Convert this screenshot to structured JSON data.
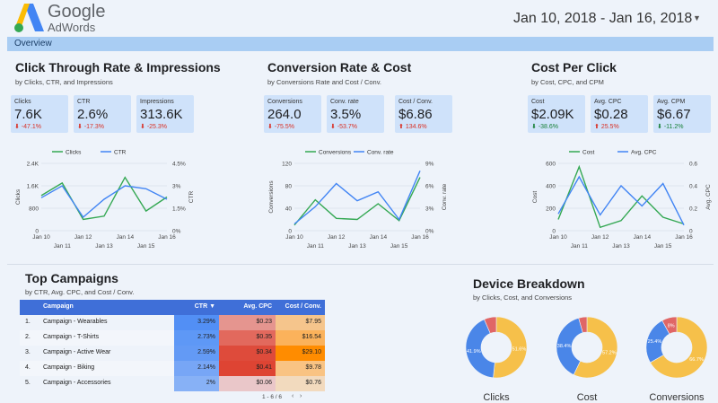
{
  "header": {
    "brand_line1": "Google",
    "brand_line2": "AdWords",
    "date_range": "Jan 10, 2018 - Jan 16, 2018",
    "tab": "Overview"
  },
  "colors": {
    "accent": "#3f6fd8",
    "series_green": "#34a853",
    "series_blue": "#4285f4",
    "donut_yellow": "#f6c04a",
    "donut_blue": "#4a86e8",
    "donut_red": "#e06666"
  },
  "sections": [
    {
      "title": "Click Through Rate & Impressions",
      "subtitle": "by Clicks, CTR, and Impressions",
      "cards": [
        {
          "label": "Clicks",
          "value": "7.6K",
          "delta": "-47.1%",
          "dir": "down",
          "sentiment": "neg"
        },
        {
          "label": "CTR",
          "value": "2.6%",
          "delta": "-17.3%",
          "dir": "down",
          "sentiment": "neg"
        },
        {
          "label": "Impressions",
          "value": "313.6K",
          "delta": "-25.3%",
          "dir": "down",
          "sentiment": "neg"
        }
      ],
      "legend": [
        "Clicks",
        "CTR"
      ],
      "left_axis_title": "Clicks",
      "right_axis_title": "CTR"
    },
    {
      "title": "Conversion Rate & Cost",
      "subtitle": "by Conversions Rate and Cost / Conv.",
      "cards": [
        {
          "label": "Conversions",
          "value": "264.0",
          "delta": "-75.5%",
          "dir": "down",
          "sentiment": "neg"
        },
        {
          "label": "Conv. rate",
          "value": "3.5%",
          "delta": "-53.7%",
          "dir": "down",
          "sentiment": "neg"
        },
        {
          "label": "Cost / Conv.",
          "value": "$6.86",
          "delta": "134.6%",
          "dir": "up",
          "sentiment": "neg"
        }
      ],
      "legend": [
        "Conversions",
        "Conv. rate"
      ],
      "left_axis_title": "Conversions",
      "right_axis_title": "Conv. rate"
    },
    {
      "title": "Cost Per Click",
      "subtitle": "by Cost, CPC, and CPM",
      "cards": [
        {
          "label": "Cost",
          "value": "$2.09K",
          "delta": "-38.6%",
          "dir": "down",
          "sentiment": "pos"
        },
        {
          "label": "Avg. CPC",
          "value": "$0.28",
          "delta": "25.5%",
          "dir": "up",
          "sentiment": "neg"
        },
        {
          "label": "Avg. CPM",
          "value": "$6.67",
          "delta": "-11.2%",
          "dir": "down",
          "sentiment": "pos"
        }
      ],
      "legend": [
        "Cost",
        "Avg. CPC"
      ],
      "left_axis_title": "Cost",
      "right_axis_title": "Avg. CPC"
    }
  ],
  "chart_data": [
    {
      "type": "line",
      "x": [
        "Jan 10",
        "Jan 11",
        "Jan 12",
        "Jan 13",
        "Jan 14",
        "Jan 15",
        "Jan 16"
      ],
      "left_ticks": [
        "2.4K",
        "1.6K",
        "800",
        "0"
      ],
      "right_ticks": [
        "4.5%",
        "3%",
        "1.5%",
        "0%"
      ],
      "ylim_left": [
        0,
        2400
      ],
      "ylim_right": [
        0,
        4.5
      ],
      "series": [
        {
          "name": "Clicks",
          "axis": "left",
          "color": "green",
          "values": [
            1250,
            1700,
            400,
            520,
            1900,
            700,
            1200
          ]
        },
        {
          "name": "CTR",
          "axis": "right",
          "color": "blue",
          "values": [
            2.2,
            3.0,
            0.9,
            2.1,
            3.0,
            2.8,
            2.1
          ]
        }
      ]
    },
    {
      "type": "line",
      "x": [
        "Jan 10",
        "Jan 11",
        "Jan 12",
        "Jan 13",
        "Jan 14",
        "Jan 15",
        "Jan 16"
      ],
      "left_ticks": [
        "120",
        "80",
        "40",
        "0"
      ],
      "right_ticks": [
        "9%",
        "6%",
        "3%",
        "0%"
      ],
      "ylim_left": [
        0,
        120
      ],
      "ylim_right": [
        0,
        9
      ],
      "series": [
        {
          "name": "Conversions",
          "axis": "left",
          "color": "green",
          "values": [
            10,
            55,
            22,
            20,
            48,
            18,
            95
          ]
        },
        {
          "name": "Conv. rate",
          "axis": "right",
          "color": "blue",
          "values": [
            0.9,
            3.2,
            6.3,
            4.0,
            5.2,
            1.5,
            8.0
          ]
        }
      ]
    },
    {
      "type": "line",
      "x": [
        "Jan 10",
        "Jan 11",
        "Jan 12",
        "Jan 13",
        "Jan 14",
        "Jan 15",
        "Jan 16"
      ],
      "left_ticks": [
        "600",
        "400",
        "200",
        "0"
      ],
      "right_ticks": [
        "0.6",
        "0.4",
        "0.2",
        "0"
      ],
      "ylim_left": [
        0,
        600
      ],
      "ylim_right": [
        0,
        0.6
      ],
      "series": [
        {
          "name": "Cost",
          "axis": "left",
          "color": "green",
          "values": [
            100,
            570,
            30,
            90,
            310,
            120,
            60
          ]
        },
        {
          "name": "Avg. CPC",
          "axis": "right",
          "color": "blue",
          "values": [
            0.15,
            0.48,
            0.14,
            0.4,
            0.22,
            0.42,
            0.05
          ]
        }
      ]
    },
    {
      "type": "table",
      "title": "Top Campaigns",
      "subtitle": "by CTR, Avg. CPC, and Cost / Conv.",
      "columns": [
        "Campaign",
        "CTR ▼",
        "Avg. CPC",
        "Cost / Conv."
      ],
      "rows": [
        {
          "idx": "1.",
          "name": "Campaign - Wearables",
          "ctr": "3.29%",
          "cpc": "$0.23",
          "cpconv": "$7.95",
          "ctr_level": 0.95,
          "cpc_level": 0.45,
          "cpconv_level": 0.3
        },
        {
          "idx": "2.",
          "name": "Campaign - T-Shirts",
          "ctr": "2.73%",
          "cpc": "$0.35",
          "cpconv": "$16.54",
          "ctr_level": 0.85,
          "cpc_level": 0.75,
          "cpconv_level": 0.55
        },
        {
          "idx": "3.",
          "name": "Campaign - Active Wear",
          "ctr": "2.59%",
          "cpc": "$0.34",
          "cpconv": "$29.10",
          "ctr_level": 0.8,
          "cpc_level": 0.95,
          "cpconv_level": 1.0
        },
        {
          "idx": "4.",
          "name": "Campaign - Biking",
          "ctr": "2.14%",
          "cpc": "$0.41",
          "cpconv": "$9.78",
          "ctr_level": 0.65,
          "cpc_level": 1.0,
          "cpconv_level": 0.35
        },
        {
          "idx": "5.",
          "name": "Campaign - Accessories",
          "ctr": "2%",
          "cpc": "$0.06",
          "cpconv": "$0.76",
          "ctr_level": 0.5,
          "cpc_level": 0.1,
          "cpconv_level": 0.05
        }
      ],
      "pager": "1 - 6 / 6"
    },
    {
      "type": "pie",
      "title": "Device Breakdown",
      "subtitle": "by Clicks, Cost, and Conversions",
      "donuts": [
        {
          "label": "Clicks",
          "slices": [
            {
              "name": "yellow",
              "value": 51.6,
              "text": "51.6%"
            },
            {
              "name": "blue",
              "value": 41.9,
              "text": "41.9%"
            },
            {
              "name": "red",
              "value": 6.5,
              "text": ""
            }
          ]
        },
        {
          "label": "Cost",
          "slices": [
            {
              "name": "yellow",
              "value": 57.2,
              "text": "57.2%"
            },
            {
              "name": "blue",
              "value": 38.4,
              "text": "38.4%"
            },
            {
              "name": "red",
              "value": 4.4,
              "text": ""
            }
          ]
        },
        {
          "label": "Conversions",
          "slices": [
            {
              "name": "yellow",
              "value": 66.7,
              "text": "66.7%"
            },
            {
              "name": "blue",
              "value": 25.4,
              "text": "25.4%"
            },
            {
              "name": "red",
              "value": 7.9,
              "text": "8%"
            }
          ]
        }
      ]
    }
  ]
}
